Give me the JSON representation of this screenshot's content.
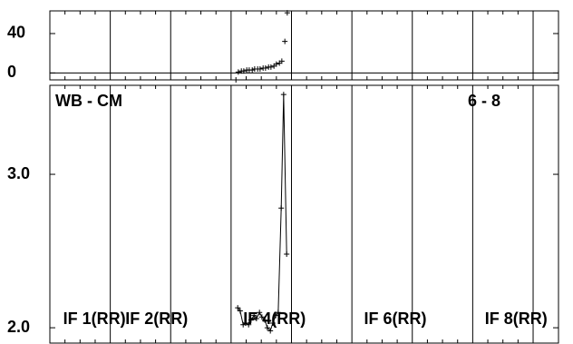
{
  "chart_data": [
    {
      "type": "scatter",
      "xlim": [
        0,
        8.42
      ],
      "xticks": [
        1,
        2,
        3,
        4,
        5,
        6,
        7,
        8
      ],
      "ylim": [
        -7,
        63
      ],
      "yticks": [
        0,
        40
      ],
      "zero_line": true,
      "grid": true,
      "series": [
        {
          "color": "#000000",
          "x": [
            3.08,
            3.12,
            3.17,
            3.21,
            3.26,
            3.3,
            3.35,
            3.39,
            3.44,
            3.48,
            3.53,
            3.57,
            3.62,
            3.66,
            3.71,
            3.75,
            3.8,
            3.84,
            3.89,
            3.93
          ],
          "values": [
            -7,
            1,
            2,
            2,
            3,
            3,
            3,
            4,
            4,
            4,
            5,
            5,
            6,
            6,
            7,
            9,
            10,
            12,
            32,
            61
          ]
        }
      ]
    },
    {
      "type": "line",
      "annotations": [
        {
          "text": "WB - CM",
          "corner": "left"
        },
        {
          "text": "6 - 8",
          "corner": "right"
        }
      ],
      "panel_labels": [
        {
          "text": "IF 1(RR)",
          "x": 0.22
        },
        {
          "text": "IF 2(RR)",
          "x": 1.25
        },
        {
          "text": "IF 4(RR)",
          "x": 3.2
        },
        {
          "text": "IF 6(RR)",
          "x": 5.2
        },
        {
          "text": "IF 8(RR)",
          "x": 7.2
        }
      ],
      "xlim": [
        0,
        8.42
      ],
      "xticks": [
        1,
        2,
        3,
        4,
        5,
        6,
        7,
        8
      ],
      "ylim": [
        1.9,
        3.58
      ],
      "yticks": [
        {
          "value": 2.0,
          "label": "2.0"
        },
        {
          "value": 3.0,
          "label": "3.0"
        }
      ],
      "grid": true,
      "series": [
        {
          "color": "#000000",
          "x": [
            3.11,
            3.15,
            3.2,
            3.24,
            3.29,
            3.33,
            3.38,
            3.42,
            3.47,
            3.51,
            3.56,
            3.6,
            3.65,
            3.69,
            3.74,
            3.78,
            3.83,
            3.87,
            3.92
          ],
          "values": [
            2.13,
            2.11,
            2.02,
            2.03,
            2.02,
            2.05,
            2.08,
            2.06,
            2.1,
            2.07,
            2.05,
            2.0,
            1.98,
            2.03,
            2.08,
            2.1,
            2.78,
            3.52,
            2.48
          ]
        }
      ]
    }
  ]
}
